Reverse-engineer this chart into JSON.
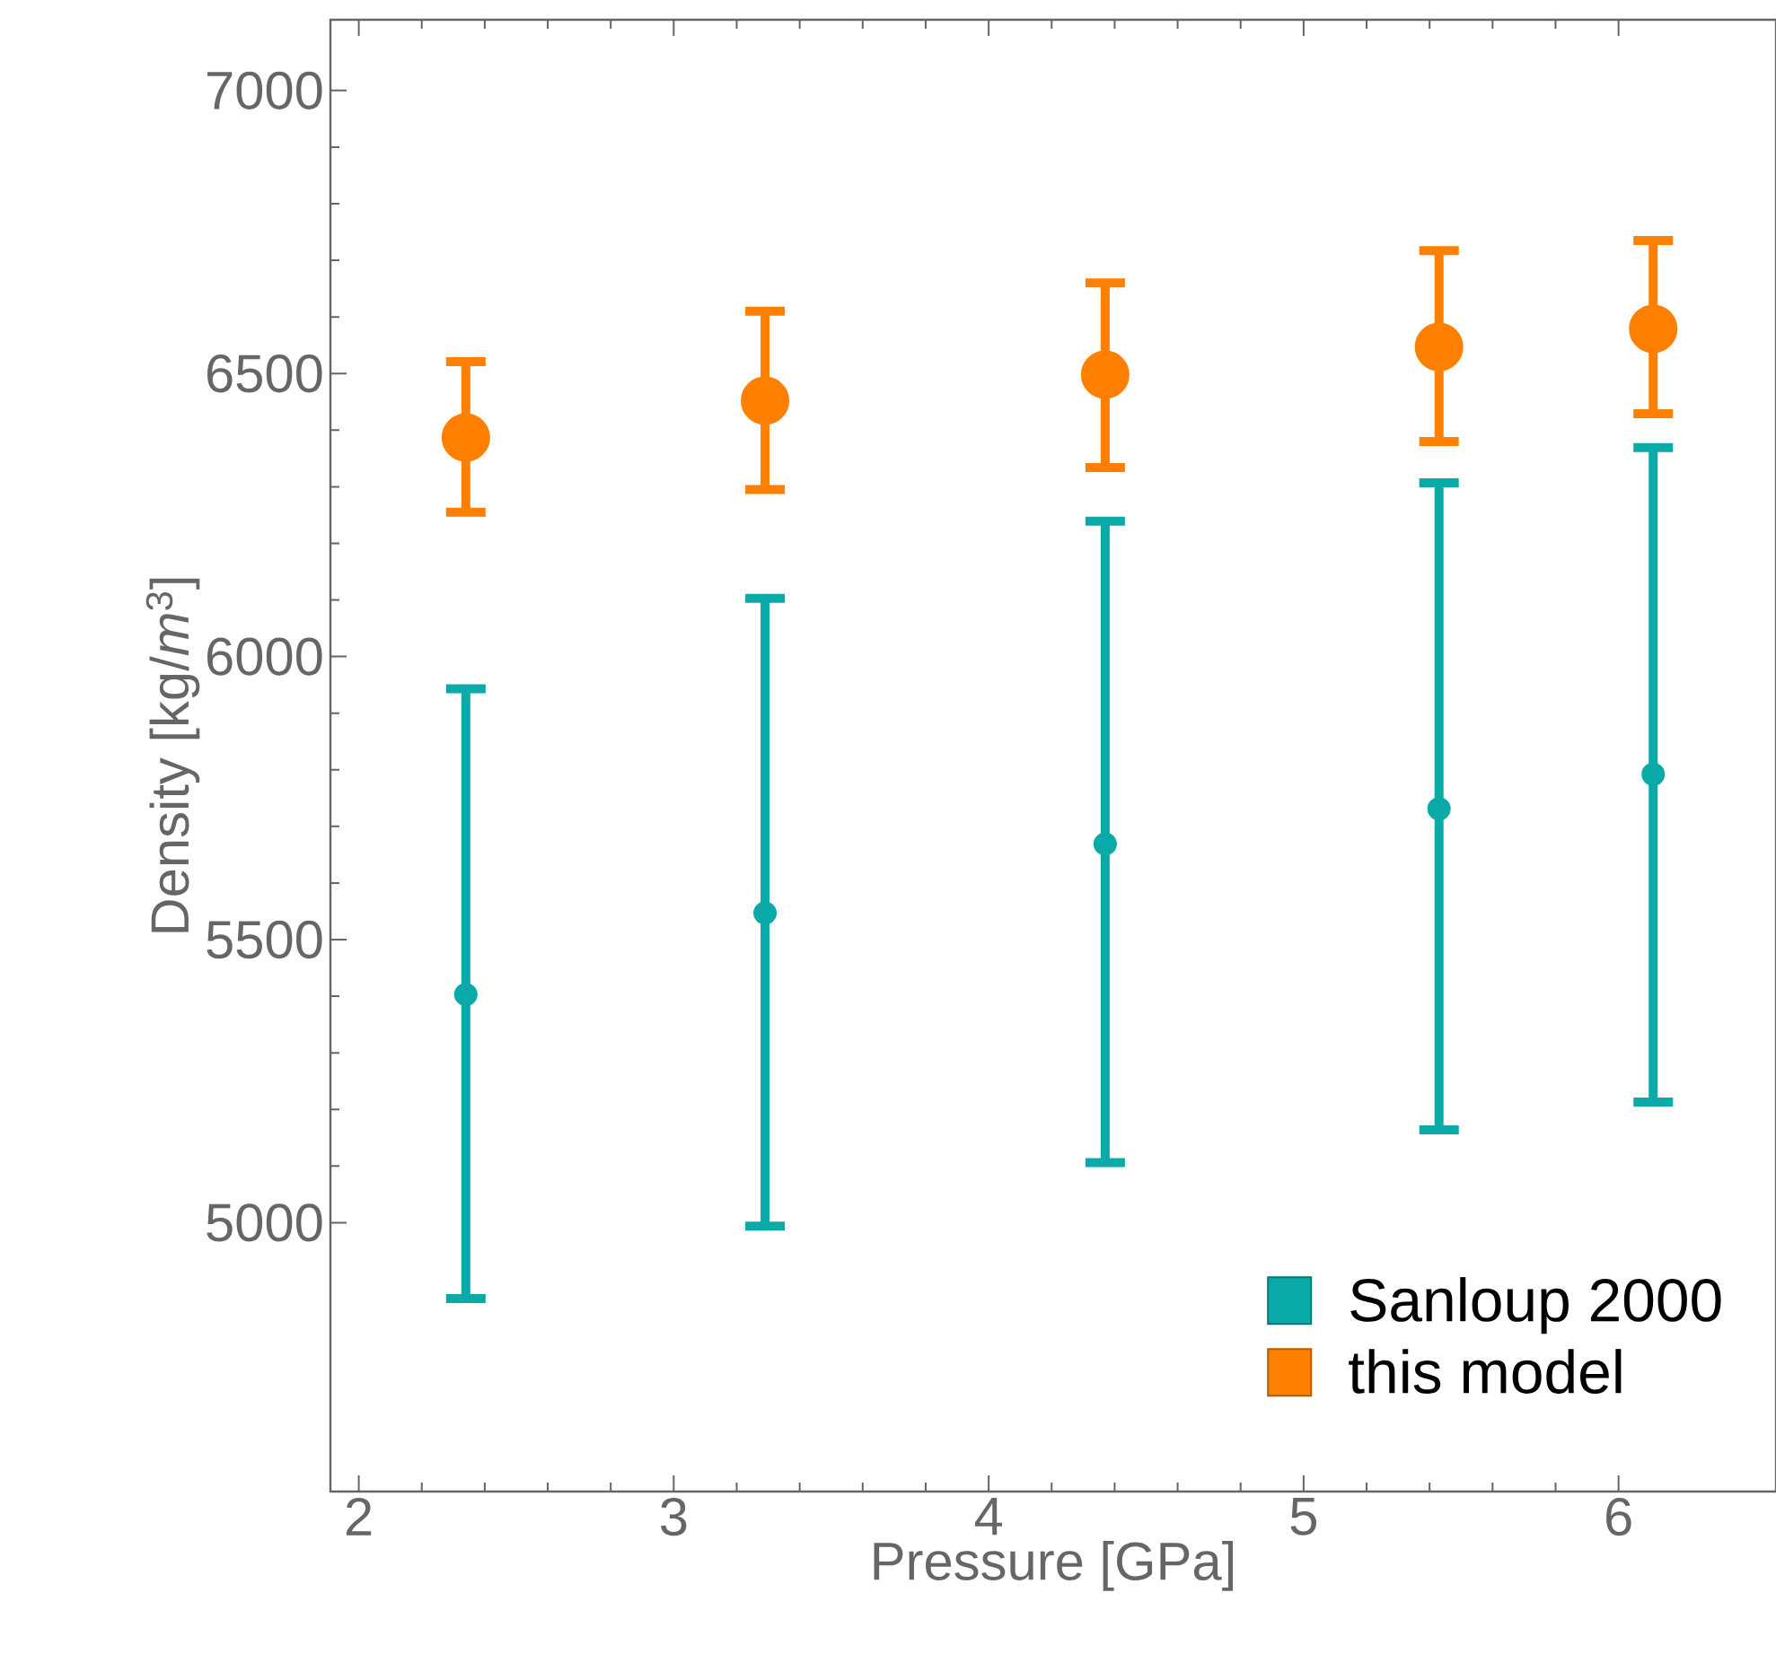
{
  "chart_data": {
    "type": "scatter",
    "xlabel": "Pressure  [GPa]",
    "ylabel": "Density [kg/*m*$^{3}$]",
    "xlim": [
      1.91,
      6.5
    ],
    "ylim": [
      4525,
      7125
    ],
    "xticks": [
      2,
      3,
      4,
      5,
      6
    ],
    "yticks": [
      5000,
      5500,
      6000,
      6500,
      7000
    ],
    "grid": false,
    "legend": "bottom right",
    "marker": "circle",
    "series": [
      {
        "name": "Sanloup 2000",
        "color": "#0aaaa8",
        "x": [
          2.34,
          3.29,
          4.37,
          5.43,
          6.11
        ],
        "values": [
          5403,
          5547,
          5669,
          5731,
          5792
        ],
        "errors": [
          [
            4866,
            5943
          ],
          [
            4994,
            6103
          ],
          [
            5106,
            6239
          ],
          [
            5164,
            6307
          ],
          [
            5213,
            6369
          ]
        ]
      },
      {
        "name": "this model",
        "color": "#ff8000",
        "x": [
          2.34,
          3.29,
          4.37,
          5.43,
          6.11
        ],
        "values": [
          6387,
          6452,
          6498,
          6547,
          6579
        ],
        "errors": [
          [
            6255,
            6521
          ],
          [
            6295,
            6610
          ],
          [
            6334,
            6660
          ],
          [
            6380,
            6717
          ],
          [
            6429,
            6735
          ]
        ]
      }
    ]
  }
}
